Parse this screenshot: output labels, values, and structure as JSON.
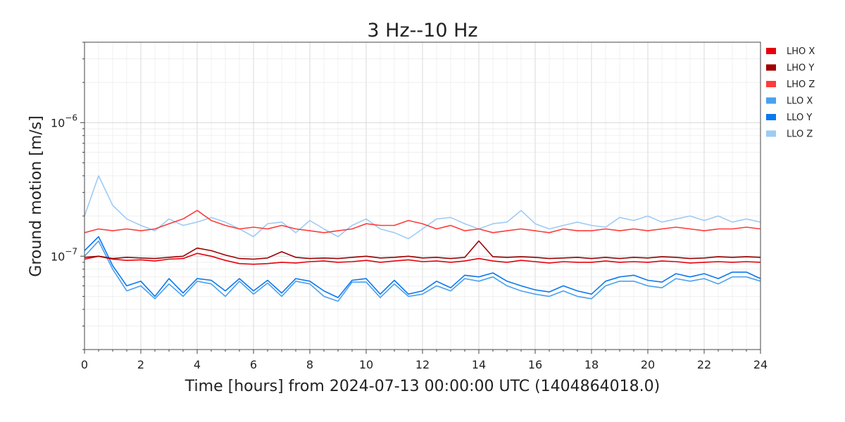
{
  "chart_data": {
    "type": "line",
    "title": "3 Hz--10 Hz",
    "xlabel": "Time [hours] from 2024-07-13 00:00:00 UTC (1404864018.0)",
    "ylabel": "Ground motion [m/s]",
    "xlim": [
      0,
      24
    ],
    "ylim": [
      2e-08,
      4e-06
    ],
    "yscale": "log",
    "grid": true,
    "legend_position": "top-right outside",
    "x_ticks": [
      "0",
      "2",
      "4",
      "6",
      "8",
      "10",
      "12",
      "14",
      "16",
      "18",
      "20",
      "22",
      "24"
    ],
    "y_ticks": [
      {
        "base": "10",
        "exp": "−7",
        "value": 1e-07
      },
      {
        "base": "10",
        "exp": "−6",
        "value": 1e-06
      }
    ],
    "series": [
      {
        "name": "LHO X",
        "color": "#e8000b",
        "x": [
          0,
          0.5,
          1,
          1.5,
          2,
          2.5,
          3,
          3.5,
          4,
          4.5,
          5,
          5.5,
          6,
          6.5,
          7,
          7.5,
          8,
          8.5,
          9,
          9.5,
          10,
          10.5,
          11,
          11.5,
          12,
          12.5,
          13,
          13.5,
          14,
          14.5,
          15,
          15.5,
          16,
          16.5,
          17,
          17.5,
          18,
          18.5,
          19,
          19.5,
          20,
          20.5,
          21,
          21.5,
          22,
          22.5,
          23,
          23.5,
          24
        ],
        "y": [
          9.5e-08,
          1e-07,
          9.5e-08,
          9.3e-08,
          9.4e-08,
          9.2e-08,
          9.5e-08,
          9.6e-08,
          1.05e-07,
          1e-07,
          9.3e-08,
          8.8e-08,
          8.7e-08,
          8.8e-08,
          9e-08,
          8.9e-08,
          9.1e-08,
          9.2e-08,
          9e-08,
          9.1e-08,
          9.3e-08,
          9e-08,
          9.2e-08,
          9.4e-08,
          9.1e-08,
          9.2e-08,
          9e-08,
          9.2e-08,
          9.6e-08,
          9.2e-08,
          9e-08,
          9.3e-08,
          9.1e-08,
          8.9e-08,
          9.1e-08,
          9e-08,
          9e-08,
          9.2e-08,
          9e-08,
          9.1e-08,
          9e-08,
          9.2e-08,
          9.1e-08,
          8.9e-08,
          9e-08,
          9.1e-08,
          9e-08,
          9.1e-08,
          9e-08
        ]
      },
      {
        "name": "LHO Y",
        "color": "#a00000",
        "x": [
          0,
          0.5,
          1,
          1.5,
          2,
          2.5,
          3,
          3.5,
          4,
          4.5,
          5,
          5.5,
          6,
          6.5,
          7,
          7.5,
          8,
          8.5,
          9,
          9.5,
          10,
          10.5,
          11,
          11.5,
          12,
          12.5,
          13,
          13.5,
          14,
          14.5,
          15,
          15.5,
          16,
          16.5,
          17,
          17.5,
          18,
          18.5,
          19,
          19.5,
          20,
          20.5,
          21,
          21.5,
          22,
          22.5,
          23,
          23.5,
          24
        ],
        "y": [
          9.8e-08,
          1e-07,
          9.6e-08,
          9.8e-08,
          9.7e-08,
          9.6e-08,
          9.8e-08,
          1e-07,
          1.15e-07,
          1.1e-07,
          1.02e-07,
          9.6e-08,
          9.5e-08,
          9.7e-08,
          1.08e-07,
          9.8e-08,
          9.6e-08,
          9.7e-08,
          9.6e-08,
          9.8e-08,
          1e-07,
          9.7e-08,
          9.8e-08,
          1e-07,
          9.7e-08,
          9.8e-08,
          9.6e-08,
          9.8e-08,
          1.3e-07,
          9.9e-08,
          9.8e-08,
          9.9e-08,
          9.8e-08,
          9.6e-08,
          9.7e-08,
          9.8e-08,
          9.6e-08,
          9.8e-08,
          9.6e-08,
          9.8e-08,
          9.7e-08,
          9.9e-08,
          9.8e-08,
          9.6e-08,
          9.7e-08,
          9.9e-08,
          9.8e-08,
          9.9e-08,
          9.8e-08
        ]
      },
      {
        "name": "LHO Z",
        "color": "#ff3b3b",
        "x": [
          0,
          0.5,
          1,
          1.5,
          2,
          2.5,
          3,
          3.5,
          4,
          4.5,
          5,
          5.5,
          6,
          6.5,
          7,
          7.5,
          8,
          8.5,
          9,
          9.5,
          10,
          10.5,
          11,
          11.5,
          12,
          12.5,
          13,
          13.5,
          14,
          14.5,
          15,
          15.5,
          16,
          16.5,
          17,
          17.5,
          18,
          18.5,
          19,
          19.5,
          20,
          20.5,
          21,
          21.5,
          22,
          22.5,
          23,
          23.5,
          24
        ],
        "y": [
          1.5e-07,
          1.6e-07,
          1.55e-07,
          1.6e-07,
          1.55e-07,
          1.6e-07,
          1.75e-07,
          1.9e-07,
          2.2e-07,
          1.85e-07,
          1.7e-07,
          1.6e-07,
          1.65e-07,
          1.6e-07,
          1.7e-07,
          1.6e-07,
          1.55e-07,
          1.5e-07,
          1.55e-07,
          1.6e-07,
          1.75e-07,
          1.7e-07,
          1.7e-07,
          1.85e-07,
          1.75e-07,
          1.6e-07,
          1.7e-07,
          1.55e-07,
          1.6e-07,
          1.5e-07,
          1.55e-07,
          1.6e-07,
          1.55e-07,
          1.5e-07,
          1.6e-07,
          1.55e-07,
          1.55e-07,
          1.6e-07,
          1.55e-07,
          1.6e-07,
          1.55e-07,
          1.6e-07,
          1.65e-07,
          1.6e-07,
          1.55e-07,
          1.6e-07,
          1.6e-07,
          1.65e-07,
          1.6e-07
        ]
      },
      {
        "name": "LLO X",
        "color": "#4aa0f0",
        "x": [
          0,
          0.5,
          1,
          1.5,
          2,
          2.5,
          3,
          3.5,
          4,
          4.5,
          5,
          5.5,
          6,
          6.5,
          7,
          7.5,
          8,
          8.5,
          9,
          9.5,
          10,
          10.5,
          11,
          11.5,
          12,
          12.5,
          13,
          13.5,
          14,
          14.5,
          15,
          15.5,
          16,
          16.5,
          17,
          17.5,
          18,
          18.5,
          19,
          19.5,
          20,
          20.5,
          21,
          21.5,
          22,
          22.5,
          23,
          23.5,
          24
        ],
        "y": [
          1e-07,
          1.3e-07,
          8e-08,
          5.5e-08,
          6e-08,
          4.8e-08,
          6.2e-08,
          5e-08,
          6.5e-08,
          6.2e-08,
          5e-08,
          6.5e-08,
          5.2e-08,
          6.3e-08,
          5e-08,
          6.5e-08,
          6.2e-08,
          5e-08,
          4.6e-08,
          6.4e-08,
          6.4e-08,
          4.9e-08,
          6.2e-08,
          5e-08,
          5.2e-08,
          6e-08,
          5.5e-08,
          6.8e-08,
          6.5e-08,
          7e-08,
          6e-08,
          5.5e-08,
          5.2e-08,
          5e-08,
          5.5e-08,
          5e-08,
          4.8e-08,
          6e-08,
          6.5e-08,
          6.5e-08,
          6e-08,
          5.8e-08,
          6.8e-08,
          6.5e-08,
          6.8e-08,
          6.2e-08,
          7e-08,
          7e-08,
          6.5e-08
        ]
      },
      {
        "name": "LLO Y",
        "color": "#0a78f0",
        "x": [
          0,
          0.5,
          1,
          1.5,
          2,
          2.5,
          3,
          3.5,
          4,
          4.5,
          5,
          5.5,
          6,
          6.5,
          7,
          7.5,
          8,
          8.5,
          9,
          9.5,
          10,
          10.5,
          11,
          11.5,
          12,
          12.5,
          13,
          13.5,
          14,
          14.5,
          15,
          15.5,
          16,
          16.5,
          17,
          17.5,
          18,
          18.5,
          19,
          19.5,
          20,
          20.5,
          21,
          21.5,
          22,
          22.5,
          23,
          23.5,
          24
        ],
        "y": [
          1.1e-07,
          1.4e-07,
          8.5e-08,
          6e-08,
          6.5e-08,
          5e-08,
          6.8e-08,
          5.3e-08,
          6.8e-08,
          6.6e-08,
          5.5e-08,
          6.8e-08,
          5.5e-08,
          6.6e-08,
          5.3e-08,
          6.8e-08,
          6.5e-08,
          5.5e-08,
          4.9e-08,
          6.6e-08,
          6.8e-08,
          5.2e-08,
          6.6e-08,
          5.2e-08,
          5.5e-08,
          6.5e-08,
          5.8e-08,
          7.2e-08,
          7e-08,
          7.5e-08,
          6.5e-08,
          6e-08,
          5.6e-08,
          5.4e-08,
          6e-08,
          5.5e-08,
          5.2e-08,
          6.5e-08,
          7e-08,
          7.2e-08,
          6.6e-08,
          6.4e-08,
          7.4e-08,
          7e-08,
          7.4e-08,
          6.8e-08,
          7.6e-08,
          7.6e-08,
          6.8e-08
        ]
      },
      {
        "name": "LLO Z",
        "color": "#9ecbf5",
        "x": [
          0,
          0.5,
          1,
          1.5,
          2,
          2.5,
          3,
          3.5,
          4,
          4.5,
          5,
          5.5,
          6,
          6.5,
          7,
          7.5,
          8,
          8.5,
          9,
          9.5,
          10,
          10.5,
          11,
          11.5,
          12,
          12.5,
          13,
          13.5,
          14,
          14.5,
          15,
          15.5,
          16,
          16.5,
          17,
          17.5,
          18,
          18.5,
          19,
          19.5,
          20,
          20.5,
          21,
          21.5,
          22,
          22.5,
          23,
          23.5,
          24
        ],
        "y": [
          2e-07,
          4e-07,
          2.4e-07,
          1.9e-07,
          1.7e-07,
          1.55e-07,
          1.9e-07,
          1.7e-07,
          1.8e-07,
          1.95e-07,
          1.8e-07,
          1.6e-07,
          1.4e-07,
          1.75e-07,
          1.8e-07,
          1.5e-07,
          1.85e-07,
          1.6e-07,
          1.4e-07,
          1.7e-07,
          1.9e-07,
          1.6e-07,
          1.5e-07,
          1.35e-07,
          1.6e-07,
          1.9e-07,
          1.95e-07,
          1.75e-07,
          1.6e-07,
          1.75e-07,
          1.8e-07,
          2.2e-07,
          1.75e-07,
          1.6e-07,
          1.7e-07,
          1.8e-07,
          1.7e-07,
          1.65e-07,
          1.95e-07,
          1.85e-07,
          2e-07,
          1.8e-07,
          1.9e-07,
          2e-07,
          1.85e-07,
          2e-07,
          1.8e-07,
          1.9e-07,
          1.8e-07
        ]
      }
    ]
  }
}
